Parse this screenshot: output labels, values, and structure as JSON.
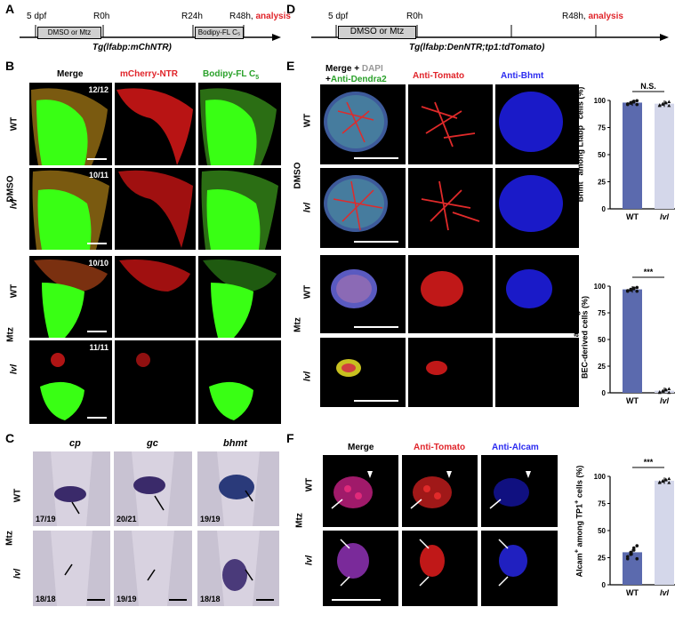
{
  "panels": {
    "A": "A",
    "B": "B",
    "C": "C",
    "D": "D",
    "E": "E",
    "F": "F"
  },
  "timeline_A": {
    "t1": "5 dpf",
    "t2": "R0h",
    "t3": "R24h",
    "t4": "R48h,",
    "t5": "analysis",
    "box1": "DMSO or Mtz",
    "box2": "Bodipy-FL C₅",
    "genotype": "Tg(lfabp:mChNTR)"
  },
  "timeline_D": {
    "t1": "5 dpf",
    "t2": "R0h",
    "t4": "R48h,",
    "t5": "analysis",
    "box1": "DMSO or Mtz",
    "genotype": "Tg(lfabp:DenNTR;tp1:tdTomato)"
  },
  "B": {
    "col1": "Merge",
    "col2": "mCherry-NTR",
    "col3": "Bodipy-FL C",
    "col3sub": "5",
    "cond1": "DMSO",
    "cond2": "Mtz",
    "wt": "WT",
    "lvl": "lvl",
    "counts": [
      "12/12",
      "10/11",
      "10/10",
      "11/11"
    ]
  },
  "C": {
    "col1": "cp",
    "col2": "gc",
    "col3": "bhmt",
    "cond": "Mtz",
    "wt": "WT",
    "lvl": "lvl",
    "counts_wt": [
      "17/19",
      "20/21",
      "19/19"
    ],
    "counts_lvl": [
      "18/18",
      "19/19",
      "18/18"
    ]
  },
  "E": {
    "col1a": "Merge + ",
    "col1b": "DAPI",
    "col1c": "+",
    "col1d": "Anti-Dendra2",
    "col2": "Anti-Tomato",
    "col3": "Anti-Bhmt",
    "cond1": "DMSO",
    "cond2": "Mtz",
    "wt": "WT",
    "lvl": "lvl"
  },
  "F": {
    "col1": "Merge",
    "col2": "Anti-Tomato",
    "col3": "Anti-Alcam",
    "cond": "Mtz",
    "wt": "WT",
    "lvl": "lvl"
  },
  "chart_data": [
    {
      "type": "bar",
      "categories": [
        "WT",
        "lvl"
      ],
      "values": [
        98,
        97
      ],
      "ylim": [
        0,
        100
      ],
      "yticks": [
        0,
        25,
        50,
        75,
        100
      ],
      "ylabel": "Bhmt+ among Lfabp+ cells (%)",
      "significance": "N.S.",
      "colors": [
        "#5b6aae",
        "#d4d7ea"
      ]
    },
    {
      "type": "bar",
      "categories": [
        "WT",
        "lvl"
      ],
      "values": [
        97,
        2
      ],
      "ylim": [
        0,
        100
      ],
      "yticks": [
        0,
        25,
        50,
        75,
        100
      ],
      "ylabel": "Bhmt+ among BEC-derived cells (%)",
      "significance": "***",
      "colors": [
        "#5b6aae",
        "#d4d7ea"
      ]
    },
    {
      "type": "bar",
      "categories": [
        "WT",
        "lvl"
      ],
      "values": [
        30,
        96
      ],
      "ylim": [
        0,
        100
      ],
      "yticks": [
        0,
        25,
        50,
        75,
        100
      ],
      "ylabel": "Alcam+ among TP1+ cells (%)",
      "significance": "***",
      "colors": [
        "#5b6aae",
        "#d4d7ea"
      ]
    }
  ]
}
